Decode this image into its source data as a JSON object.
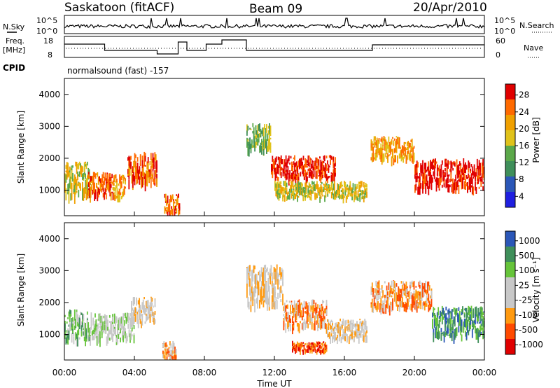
{
  "header": {
    "radar": "Saskatoon (fitACF)",
    "beam": "Beam 09",
    "date": "20/Apr/2010"
  },
  "strip_labels": {
    "nsky": "N.Sky",
    "nsearch": "N.Search",
    "freq_line1": "Freq.",
    "freq_line2": "[MHz]",
    "nave": "Nave",
    "cpid": "CPID",
    "cpid_value": "normalsound (fast) -157"
  },
  "strip_ticks": {
    "noise_left": [
      "10^5",
      "10^0"
    ],
    "noise_right": [
      "10^5",
      "10^0"
    ],
    "freq_left": [
      "18",
      "8"
    ],
    "nave_right": [
      "60",
      "0"
    ]
  },
  "colors": {
    "power": [
      "#1f1fe0",
      "#2b57b8",
      "#3f8f5a",
      "#5ba84a",
      "#e0c21a",
      "#f0a000",
      "#ff6a00",
      "#e00000"
    ],
    "velocity": [
      "#e00000",
      "#ff4a00",
      "#ff9a10",
      "#c8c8c8",
      "#c8c8c8",
      "#66c43a",
      "#3f8f5a",
      "#2b57b8"
    ]
  },
  "chart_data": [
    {
      "type": "heatmap",
      "name": "power",
      "ylabel": "Slant Range [km]",
      "xlim": [
        "00:00",
        "24:00"
      ],
      "ylim": [
        200,
        4500
      ],
      "yticks": [
        "4000",
        "3000",
        "2000",
        "1000"
      ],
      "colorbar": {
        "label": "Power [dB]",
        "ticks": [
          "28",
          "24",
          "20",
          "16",
          "12",
          "8",
          "4"
        ]
      },
      "blobs": [
        {
          "t0": 0.0,
          "t1": 1.5,
          "r0": 900,
          "r1": 1900,
          "level": 4
        },
        {
          "t0": 1.3,
          "t1": 2.8,
          "r0": 900,
          "r1": 1600,
          "level": 6
        },
        {
          "t0": 2.8,
          "t1": 3.5,
          "r0": 800,
          "r1": 1500,
          "level": 5
        },
        {
          "t0": 3.6,
          "t1": 5.3,
          "r0": 1300,
          "r1": 2200,
          "level": 6
        },
        {
          "t0": 5.7,
          "t1": 6.6,
          "r0": 300,
          "r1": 900,
          "level": 6
        },
        {
          "t0": 10.4,
          "t1": 11.8,
          "r0": 2300,
          "r1": 3100,
          "level": 3
        },
        {
          "t0": 11.8,
          "t1": 15.5,
          "r0": 1400,
          "r1": 2100,
          "level": 7
        },
        {
          "t0": 12.0,
          "t1": 17.3,
          "r0": 800,
          "r1": 1300,
          "level": 4
        },
        {
          "t0": 17.5,
          "t1": 20.0,
          "r0": 2000,
          "r1": 2700,
          "level": 5
        },
        {
          "t0": 20.0,
          "t1": 24.0,
          "r0": 1100,
          "r1": 2000,
          "level": 7
        }
      ]
    },
    {
      "type": "heatmap",
      "name": "velocity",
      "ylabel": "Slant Range [km]",
      "xlabel": "Time UT",
      "xlim": [
        "00:00",
        "24:00"
      ],
      "ylim": [
        200,
        4500
      ],
      "yticks": [
        "4000",
        "3000",
        "2000",
        "1000"
      ],
      "xticks": [
        "00:00",
        "04:00",
        "08:00",
        "12:00",
        "16:00",
        "20:00",
        "00:00"
      ],
      "colorbar": {
        "label": "Velocity [m s⁻¹]",
        "ticks": [
          "1000",
          "500",
          "100",
          "25",
          "-25",
          "-100",
          "-500",
          "-1000"
        ]
      },
      "blobs": [
        {
          "t0": 0.0,
          "t1": 1.5,
          "r0": 900,
          "r1": 1800,
          "level": 5
        },
        {
          "t0": 1.5,
          "t1": 4.0,
          "r0": 900,
          "r1": 1700,
          "level": 4
        },
        {
          "t0": 3.8,
          "t1": 5.2,
          "r0": 1400,
          "r1": 2200,
          "level": 3
        },
        {
          "t0": 5.6,
          "t1": 6.4,
          "r0": 300,
          "r1": 800,
          "level": 2
        },
        {
          "t0": 10.4,
          "t1": 12.5,
          "r0": 2000,
          "r1": 3200,
          "level": 3
        },
        {
          "t0": 12.5,
          "t1": 15.0,
          "r0": 1300,
          "r1": 2100,
          "level": 2
        },
        {
          "t0": 13.0,
          "t1": 15.0,
          "r0": 500,
          "r1": 800,
          "level": 1
        },
        {
          "t0": 15.0,
          "t1": 17.3,
          "r0": 900,
          "r1": 1500,
          "level": 3
        },
        {
          "t0": 17.5,
          "t1": 21.0,
          "r0": 1900,
          "r1": 2700,
          "level": 2
        },
        {
          "t0": 21.0,
          "t1": 24.0,
          "r0": 1000,
          "r1": 1900,
          "level": 6
        }
      ]
    }
  ]
}
